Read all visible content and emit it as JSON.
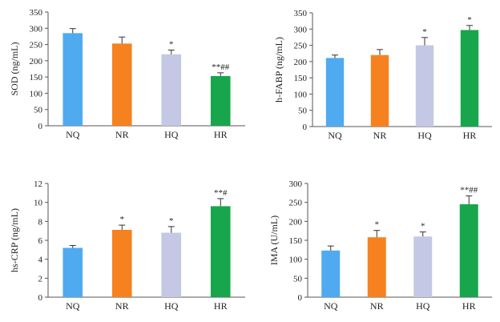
{
  "chart_data": [
    {
      "type": "bar",
      "ylabel": "SOD (ng/mL)",
      "categories": [
        "NQ",
        "NR",
        "HQ",
        "HR"
      ],
      "values": [
        285,
        253,
        220,
        153
      ],
      "errors": [
        14,
        20,
        13,
        10
      ],
      "annotations": [
        "",
        "",
        "*",
        "**##"
      ],
      "colors": [
        "#4faaf0",
        "#f6821f",
        "#c4c8e4",
        "#17a64b"
      ],
      "ylim": [
        0,
        350
      ],
      "yticks": [
        0,
        50,
        100,
        150,
        200,
        250,
        300,
        350
      ]
    },
    {
      "type": "bar",
      "ylabel": "h-FABP (ng/mL)",
      "categories": [
        "NQ",
        "NR",
        "HQ",
        "HR"
      ],
      "values": [
        211,
        220,
        250,
        297
      ],
      "errors": [
        9,
        17,
        24,
        14
      ],
      "annotations": [
        "",
        "",
        "*",
        "*"
      ],
      "colors": [
        "#4faaf0",
        "#f6821f",
        "#c4c8e4",
        "#17a64b"
      ],
      "ylim": [
        0,
        350
      ],
      "yticks": [
        0,
        50,
        100,
        150,
        200,
        250,
        300,
        350
      ]
    },
    {
      "type": "bar",
      "ylabel": "hs-CRP (ng/mL)",
      "categories": [
        "NQ",
        "NR",
        "HQ",
        "HR"
      ],
      "values": [
        5.2,
        7.1,
        6.8,
        9.6
      ],
      "errors": [
        0.25,
        0.5,
        0.65,
        0.8
      ],
      "annotations": [
        "",
        "*",
        "*",
        "**#"
      ],
      "colors": [
        "#4faaf0",
        "#f6821f",
        "#c4c8e4",
        "#17a64b"
      ],
      "ylim": [
        0,
        12
      ],
      "yticks": [
        0,
        2,
        4,
        6,
        8,
        10,
        12
      ]
    },
    {
      "type": "bar",
      "ylabel": "IMA (U/mL)",
      "categories": [
        "NQ",
        "NR",
        "HQ",
        "HR"
      ],
      "values": [
        123,
        158,
        160,
        245
      ],
      "errors": [
        12,
        18,
        12,
        22
      ],
      "annotations": [
        "",
        "*",
        "*",
        "**##"
      ],
      "colors": [
        "#4faaf0",
        "#f6821f",
        "#c4c8e4",
        "#17a64b"
      ],
      "ylim": [
        0,
        300
      ],
      "yticks": [
        0,
        50,
        100,
        150,
        200,
        250,
        300
      ]
    }
  ]
}
